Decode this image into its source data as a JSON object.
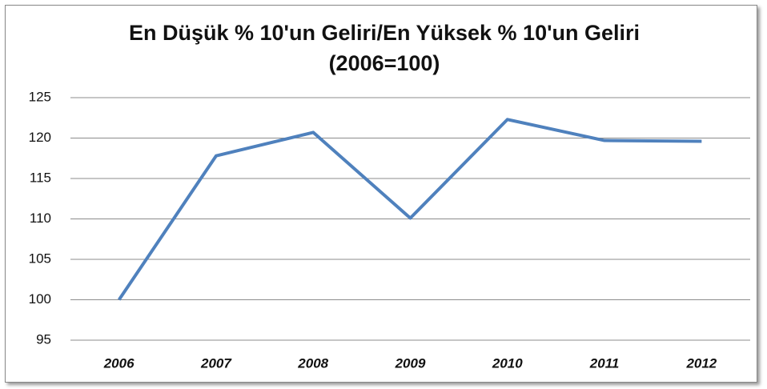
{
  "chart_data": {
    "type": "line",
    "title": "En Düşük % 10'un Geliri/En Yüksek % 10'un Geliri (2006=100)",
    "categories": [
      "2006",
      "2007",
      "2008",
      "2009",
      "2010",
      "2011",
      "2012"
    ],
    "values": [
      100,
      117.8,
      120.7,
      110.1,
      122.3,
      119.7,
      119.6
    ],
    "color": "#4f81bd",
    "ylim": [
      95,
      125
    ],
    "yticks": [
      95,
      100,
      105,
      110,
      115,
      120,
      125
    ],
    "grid": true
  }
}
